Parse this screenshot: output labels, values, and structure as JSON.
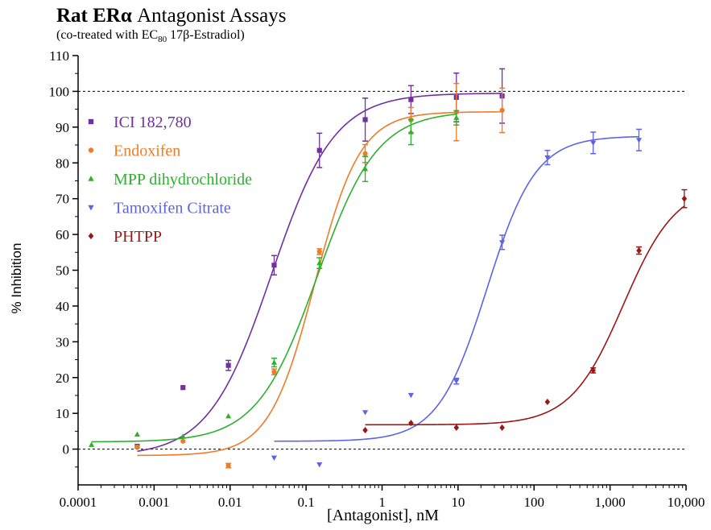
{
  "title": {
    "bold": "Rat ERα",
    "rest": " Antagonist Assays"
  },
  "subtitle": {
    "pre": "(co-treated with EC",
    "sub": "80",
    "post": " 17β-Estradiol)"
  },
  "chart_data": {
    "type": "scatter",
    "title": "Rat ERα Antagonist Assays",
    "subtitle": "(co-treated with EC80 17β-Estradiol)",
    "xlabel": "[Antagonist], nM",
    "ylabel": "% Inhibition",
    "xscale": "log",
    "xlim": [
      0.0001,
      10000
    ],
    "ylim": [
      -10,
      110
    ],
    "xticks": [
      0.0001,
      0.001,
      0.01,
      0.1,
      1,
      10,
      100,
      1000,
      10000
    ],
    "xtick_labels": [
      "0.0001",
      "0.001",
      "0.01",
      "0.1",
      "1",
      "10",
      "100",
      "1,000",
      "10,000"
    ],
    "yticks": [
      0,
      10,
      20,
      30,
      40,
      50,
      60,
      70,
      80,
      90,
      100,
      110
    ],
    "reference_lines": [
      0,
      100
    ],
    "legend_position": "top-left",
    "series": [
      {
        "name": "ICI 182,780",
        "color": "#7030a0",
        "marker": "square",
        "x": [
          0.0006,
          0.0024,
          0.0095,
          0.038,
          0.15,
          0.6,
          2.4,
          9.5,
          38
        ],
        "y": [
          0.8,
          17.2,
          23.4,
          51.4,
          83.5,
          92.1,
          97.7,
          98.3,
          98.7
        ],
        "err": [
          0,
          0,
          1.4,
          2.7,
          4.8,
          6,
          3.9,
          6.8,
          7.6
        ],
        "fit": {
          "bottom": -2,
          "top": 99.5,
          "ec50": 0.035,
          "hill": 1.05
        }
      },
      {
        "name": "Endoxifen",
        "color": "#ef7b27",
        "marker": "circle",
        "x": [
          0.0006,
          0.0024,
          0.0095,
          0.038,
          0.15,
          0.6,
          2.4,
          9.5,
          38
        ],
        "y": [
          0.6,
          2.2,
          -4.6,
          21.6,
          55.2,
          82.6,
          92,
          94.2,
          94.7
        ],
        "err": [
          0,
          0,
          0.6,
          0.8,
          0.8,
          2.5,
          3.5,
          8,
          6.2
        ],
        "fit": {
          "bottom": -1.8,
          "top": 94.3,
          "ec50": 0.13,
          "hill": 1.45
        }
      },
      {
        "name": "MPP dihydrochloride",
        "color": "#2db02d",
        "marker": "triangle-up",
        "x": [
          0.00015,
          0.0006,
          0.0024,
          0.0095,
          0.038,
          0.15,
          0.6,
          2.4,
          9.5
        ],
        "y": [
          1.2,
          4.1,
          3.5,
          9.2,
          24.2,
          52,
          78.3,
          88.6,
          92.6
        ],
        "err": [
          0,
          0,
          0,
          0,
          1.2,
          1.5,
          3.5,
          3.5,
          2
        ],
        "fit": {
          "bottom": 2,
          "top": 94.5,
          "ec50": 0.14,
          "hill": 1.1
        }
      },
      {
        "name": "Tamoxifen Citrate",
        "color": "#5c63e8",
        "marker": "triangle-down",
        "x": [
          0.038,
          0.15,
          0.6,
          2.4,
          9.5,
          38,
          150,
          600,
          2400
        ],
        "y": [
          -2.4,
          -4.3,
          10.3,
          15.1,
          19,
          57.8,
          81.5,
          85.6,
          86.4
        ],
        "err": [
          0,
          0,
          0,
          0,
          0.8,
          2,
          2,
          3,
          3
        ],
        "fit": {
          "bottom": 2.2,
          "top": 87.5,
          "ec50": 24,
          "hill": 1.35
        }
      },
      {
        "name": "PHTPP",
        "color": "#9b1616",
        "marker": "diamond",
        "x": [
          0.6,
          2.4,
          9.5,
          38,
          150,
          600,
          2400,
          9500
        ],
        "y": [
          5.3,
          7.3,
          6,
          6,
          13.2,
          22,
          55.5,
          70
        ],
        "err": [
          0,
          0,
          0,
          0,
          0,
          0.7,
          1,
          2.5
        ],
        "fit": {
          "bottom": 6.8,
          "top": 74,
          "ec50": 1500,
          "hill": 1.25
        }
      }
    ]
  }
}
